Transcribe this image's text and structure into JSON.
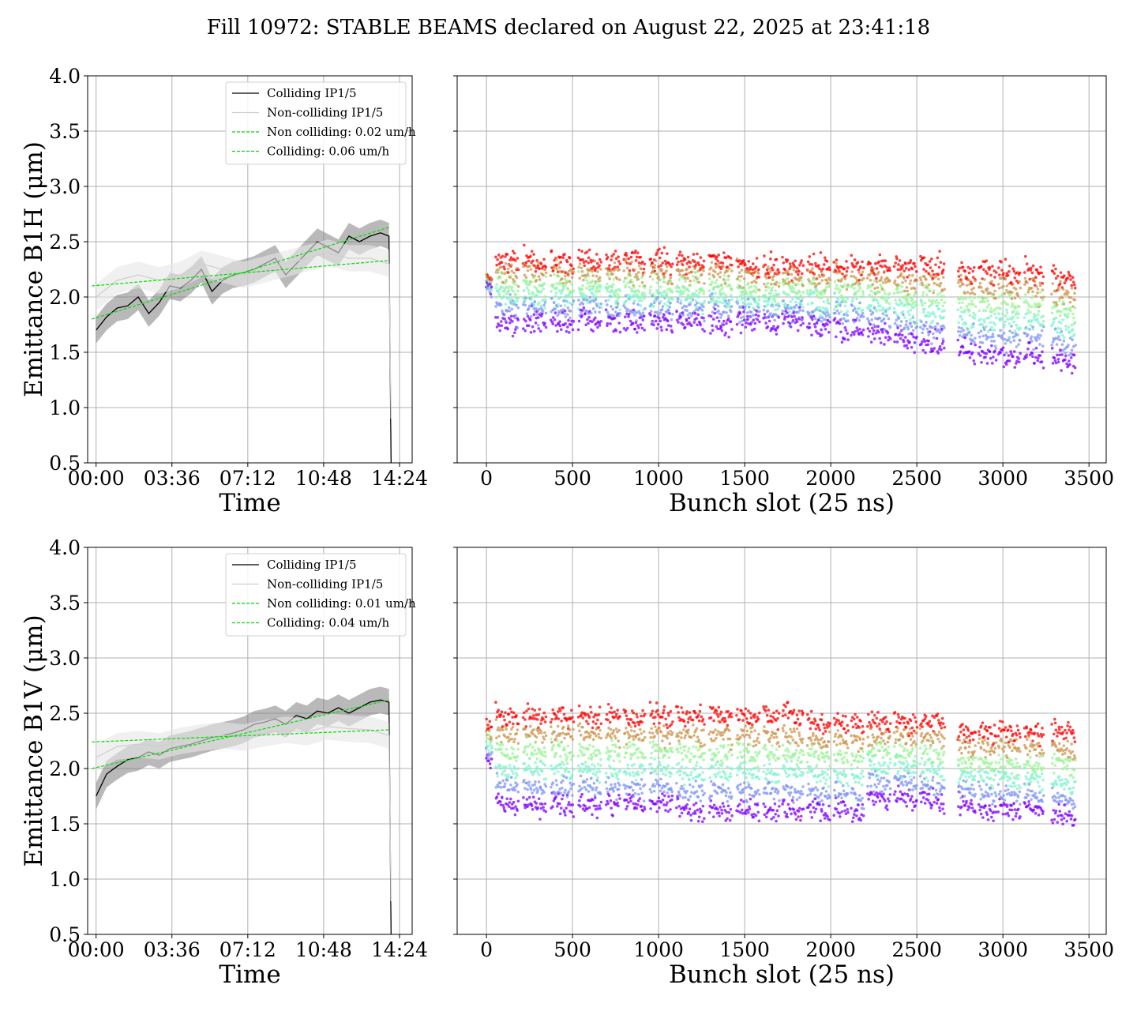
{
  "title": "Fill 10972: STABLE BEAMS declared on August 22, 2025 at 23:41:18",
  "colors": {
    "colliding": "#000000",
    "colliding_band": "#808080",
    "non_colliding": "#cfcfcf",
    "non_colliding_band": "#e6e6e6",
    "fit": "#00dd00",
    "grid": "#b0b0b0"
  },
  "chart_data": [
    {
      "id": "b1h_time",
      "type": "line",
      "title": "",
      "xlabel": "Time",
      "ylabel": "Emittance B1H (μm)",
      "xlim": [
        "-00:24",
        "15:00"
      ],
      "ylim": [
        0.5,
        4.0
      ],
      "xticks": [
        "00:00",
        "03:36",
        "07:12",
        "10:48",
        "14:24"
      ],
      "yticks": [
        "0.5",
        "1.0",
        "1.5",
        "2.0",
        "2.5",
        "3.0",
        "3.5",
        "4.0"
      ],
      "grid": true,
      "legend_position": "upper-right",
      "legend": [
        "Colliding IP1/5",
        "Non-colliding IP1/5",
        "Non colliding: 0.02 um/h",
        "Colliding: 0.06 um/h"
      ],
      "series": [
        {
          "name": "Colliding IP1/5",
          "style": "line",
          "x": [
            0.0,
            0.5,
            1.0,
            1.5,
            2.0,
            2.5,
            3.0,
            3.5,
            4.0,
            4.5,
            5.0,
            5.5,
            6.0,
            6.5,
            7.0,
            7.5,
            8.0,
            8.5,
            9.0,
            9.5,
            10.0,
            10.5,
            11.0,
            11.5,
            12.0,
            12.5,
            13.0,
            13.5,
            13.9,
            14.0
          ],
          "y": [
            1.7,
            1.82,
            1.9,
            1.92,
            2.0,
            1.85,
            1.95,
            2.1,
            2.08,
            2.15,
            2.25,
            2.05,
            2.15,
            2.2,
            2.22,
            2.25,
            2.3,
            2.35,
            2.2,
            2.3,
            2.4,
            2.5,
            2.45,
            2.4,
            2.55,
            2.5,
            2.55,
            2.58,
            2.55,
            0.5
          ]
        },
        {
          "name": "Non-colliding IP1/5",
          "style": "line",
          "x": [
            0.0,
            1.0,
            2.0,
            3.0,
            4.0,
            5.0,
            6.0,
            7.0,
            8.0,
            9.0,
            10.0,
            11.0,
            12.0,
            13.0,
            13.9,
            14.0
          ],
          "y": [
            2.0,
            2.15,
            2.2,
            2.15,
            2.2,
            2.3,
            2.25,
            2.2,
            2.25,
            2.3,
            2.35,
            2.4,
            2.35,
            2.35,
            2.3,
            0.9
          ]
        },
        {
          "name": "Non colliding: 0.02 um/h",
          "style": "dashed",
          "x": [
            -0.2,
            13.9
          ],
          "y": [
            2.1,
            2.33
          ]
        },
        {
          "name": "Colliding: 0.06 um/h",
          "style": "dashed",
          "x": [
            -0.2,
            13.9
          ],
          "y": [
            1.8,
            2.63
          ]
        }
      ]
    },
    {
      "id": "b1h_bunch",
      "type": "scatter",
      "title": "",
      "xlabel": "Bunch slot (25 ns)",
      "ylabel": "",
      "xlim": [
        -170,
        3600
      ],
      "ylim": [
        0.5,
        4.0
      ],
      "xticks": [
        "0",
        "500",
        "1000",
        "1500",
        "2000",
        "2500",
        "3000",
        "3500"
      ],
      "grid": true,
      "colormap": "rainbow",
      "trains": [
        {
          "x_start": 0,
          "x_end": 30,
          "y_start": 2.2,
          "y_end": 2.1,
          "spread": 0.2
        },
        {
          "x_start": 55,
          "x_end": 185,
          "y_start": 2.35,
          "y_end": 1.8,
          "spread": 0.35
        },
        {
          "x_start": 215,
          "x_end": 345,
          "y_start": 2.35,
          "y_end": 1.8,
          "spread": 0.35
        },
        {
          "x_start": 375,
          "x_end": 505,
          "y_start": 2.35,
          "y_end": 1.8,
          "spread": 0.35
        },
        {
          "x_start": 535,
          "x_end": 665,
          "y_start": 2.35,
          "y_end": 1.8,
          "spread": 0.35
        },
        {
          "x_start": 695,
          "x_end": 775,
          "y_start": 2.35,
          "y_end": 1.8,
          "spread": 0.35
        },
        {
          "x_start": 800,
          "x_end": 920,
          "y_start": 2.35,
          "y_end": 1.8,
          "spread": 0.35
        },
        {
          "x_start": 950,
          "x_end": 1080,
          "y_start": 2.35,
          "y_end": 1.8,
          "spread": 0.35
        },
        {
          "x_start": 1105,
          "x_end": 1190,
          "y_start": 2.35,
          "y_end": 1.8,
          "spread": 0.35
        },
        {
          "x_start": 1200,
          "x_end": 1265,
          "y_start": 2.35,
          "y_end": 1.8,
          "spread": 0.35
        },
        {
          "x_start": 1295,
          "x_end": 1425,
          "y_start": 2.35,
          "y_end": 1.8,
          "spread": 0.35
        },
        {
          "x_start": 1455,
          "x_end": 1585,
          "y_start": 2.3,
          "y_end": 1.8,
          "spread": 0.35
        },
        {
          "x_start": 1610,
          "x_end": 1700,
          "y_start": 2.3,
          "y_end": 1.8,
          "spread": 0.35
        },
        {
          "x_start": 1720,
          "x_end": 1840,
          "y_start": 2.3,
          "y_end": 1.8,
          "spread": 0.35
        },
        {
          "x_start": 1865,
          "x_end": 1995,
          "y_start": 2.3,
          "y_end": 1.75,
          "spread": 0.35
        },
        {
          "x_start": 2020,
          "x_end": 2100,
          "y_start": 2.3,
          "y_end": 1.75,
          "spread": 0.35
        },
        {
          "x_start": 2120,
          "x_end": 2190,
          "y_start": 2.3,
          "y_end": 1.75,
          "spread": 0.35
        },
        {
          "x_start": 2215,
          "x_end": 2345,
          "y_start": 2.3,
          "y_end": 1.7,
          "spread": 0.35
        },
        {
          "x_start": 2370,
          "x_end": 2500,
          "y_start": 2.3,
          "y_end": 1.65,
          "spread": 0.35
        },
        {
          "x_start": 2520,
          "x_end": 2600,
          "y_start": 2.3,
          "y_end": 1.6,
          "spread": 0.35
        },
        {
          "x_start": 2610,
          "x_end": 2660,
          "y_start": 2.3,
          "y_end": 1.6,
          "spread": 0.35
        },
        {
          "x_start": 2740,
          "x_end": 2840,
          "y_start": 2.25,
          "y_end": 1.55,
          "spread": 0.35
        },
        {
          "x_start": 2860,
          "x_end": 2960,
          "y_start": 2.25,
          "y_end": 1.5,
          "spread": 0.35
        },
        {
          "x_start": 2975,
          "x_end": 3100,
          "y_start": 2.25,
          "y_end": 1.5,
          "spread": 0.35
        },
        {
          "x_start": 3125,
          "x_end": 3235,
          "y_start": 2.25,
          "y_end": 1.5,
          "spread": 0.35
        },
        {
          "x_start": 3285,
          "x_end": 3420,
          "y_start": 2.2,
          "y_end": 1.45,
          "spread": 0.35
        }
      ]
    },
    {
      "id": "b1v_time",
      "type": "line",
      "title": "",
      "xlabel": "Time",
      "ylabel": "Emittance B1V (μm)",
      "xlim": [
        "-00:24",
        "15:00"
      ],
      "ylim": [
        0.5,
        4.0
      ],
      "xticks": [
        "00:00",
        "03:36",
        "07:12",
        "10:48",
        "14:24"
      ],
      "yticks": [
        "0.5",
        "1.0",
        "1.5",
        "2.0",
        "2.5",
        "3.0",
        "3.5",
        "4.0"
      ],
      "grid": true,
      "legend_position": "upper-right",
      "legend": [
        "Colliding IP1/5",
        "Non-colliding IP1/5",
        "Non colliding: 0.01 um/h",
        "Colliding: 0.04 um/h"
      ],
      "series": [
        {
          "name": "Colliding IP1/5",
          "style": "line",
          "x": [
            0.0,
            0.5,
            1.0,
            1.5,
            2.0,
            2.5,
            3.0,
            3.5,
            4.0,
            4.5,
            5.0,
            5.5,
            6.0,
            6.5,
            7.0,
            7.5,
            8.0,
            8.5,
            9.0,
            9.5,
            10.0,
            10.5,
            11.0,
            11.5,
            12.0,
            12.5,
            13.0,
            13.5,
            13.9,
            14.0
          ],
          "y": [
            1.75,
            1.95,
            2.02,
            2.08,
            2.1,
            2.15,
            2.12,
            2.18,
            2.2,
            2.22,
            2.25,
            2.28,
            2.3,
            2.32,
            2.35,
            2.4,
            2.42,
            2.45,
            2.4,
            2.48,
            2.45,
            2.52,
            2.5,
            2.55,
            2.5,
            2.55,
            2.6,
            2.62,
            2.6,
            0.5
          ]
        },
        {
          "name": "Non-colliding IP1/5",
          "style": "line",
          "x": [
            0.0,
            1.0,
            2.0,
            3.0,
            4.0,
            5.0,
            6.0,
            7.0,
            8.0,
            9.0,
            10.0,
            11.0,
            12.0,
            13.0,
            13.9,
            14.0
          ],
          "y": [
            2.1,
            2.2,
            2.22,
            2.2,
            2.25,
            2.28,
            2.3,
            2.28,
            2.32,
            2.35,
            2.33,
            2.38,
            2.36,
            2.35,
            2.3,
            0.8
          ]
        },
        {
          "name": "Non colliding: 0.01 um/h",
          "style": "dashed",
          "x": [
            -0.2,
            13.9
          ],
          "y": [
            2.24,
            2.35
          ]
        },
        {
          "name": "Colliding: 0.04 um/h",
          "style": "dashed",
          "x": [
            -0.2,
            13.9
          ],
          "y": [
            2.0,
            2.62
          ]
        }
      ]
    },
    {
      "id": "b1v_bunch",
      "type": "scatter",
      "title": "",
      "xlabel": "Bunch slot (25 ns)",
      "ylabel": "",
      "xlim": [
        -170,
        3600
      ],
      "ylim": [
        0.5,
        4.0
      ],
      "xticks": [
        "0",
        "500",
        "1000",
        "1500",
        "2000",
        "2500",
        "3000",
        "3500"
      ],
      "grid": true,
      "colormap": "rainbow",
      "trains": [
        {
          "x_start": 0,
          "x_end": 30,
          "y_start": 2.4,
          "y_end": 2.1,
          "spread": 0.2
        },
        {
          "x_start": 55,
          "x_end": 185,
          "y_start": 2.5,
          "y_end": 1.7,
          "spread": 0.3
        },
        {
          "x_start": 215,
          "x_end": 345,
          "y_start": 2.5,
          "y_end": 1.7,
          "spread": 0.3
        },
        {
          "x_start": 375,
          "x_end": 505,
          "y_start": 2.5,
          "y_end": 1.7,
          "spread": 0.3
        },
        {
          "x_start": 535,
          "x_end": 665,
          "y_start": 2.5,
          "y_end": 1.7,
          "spread": 0.3
        },
        {
          "x_start": 695,
          "x_end": 775,
          "y_start": 2.5,
          "y_end": 1.7,
          "spread": 0.3
        },
        {
          "x_start": 800,
          "x_end": 920,
          "y_start": 2.5,
          "y_end": 1.7,
          "spread": 0.3
        },
        {
          "x_start": 950,
          "x_end": 1080,
          "y_start": 2.5,
          "y_end": 1.7,
          "spread": 0.3
        },
        {
          "x_start": 1105,
          "x_end": 1190,
          "y_start": 2.5,
          "y_end": 1.65,
          "spread": 0.3
        },
        {
          "x_start": 1200,
          "x_end": 1265,
          "y_start": 2.5,
          "y_end": 1.65,
          "spread": 0.3
        },
        {
          "x_start": 1295,
          "x_end": 1425,
          "y_start": 2.5,
          "y_end": 1.65,
          "spread": 0.3
        },
        {
          "x_start": 1455,
          "x_end": 1585,
          "y_start": 2.5,
          "y_end": 1.65,
          "spread": 0.3
        },
        {
          "x_start": 1610,
          "x_end": 1700,
          "y_start": 2.5,
          "y_end": 1.65,
          "spread": 0.3
        },
        {
          "x_start": 1720,
          "x_end": 1840,
          "y_start": 2.5,
          "y_end": 1.65,
          "spread": 0.3
        },
        {
          "x_start": 1865,
          "x_end": 1995,
          "y_start": 2.45,
          "y_end": 1.65,
          "spread": 0.3
        },
        {
          "x_start": 2020,
          "x_end": 2100,
          "y_start": 2.45,
          "y_end": 1.65,
          "spread": 0.3
        },
        {
          "x_start": 2120,
          "x_end": 2190,
          "y_start": 2.45,
          "y_end": 1.6,
          "spread": 0.3
        },
        {
          "x_start": 2215,
          "x_end": 2345,
          "y_start": 2.45,
          "y_end": 1.75,
          "spread": 0.3
        },
        {
          "x_start": 2370,
          "x_end": 2500,
          "y_start": 2.45,
          "y_end": 1.75,
          "spread": 0.3
        },
        {
          "x_start": 2520,
          "x_end": 2600,
          "y_start": 2.45,
          "y_end": 1.75,
          "spread": 0.3
        },
        {
          "x_start": 2610,
          "x_end": 2660,
          "y_start": 2.45,
          "y_end": 1.7,
          "spread": 0.3
        },
        {
          "x_start": 2740,
          "x_end": 2840,
          "y_start": 2.35,
          "y_end": 1.7,
          "spread": 0.3
        },
        {
          "x_start": 2860,
          "x_end": 2960,
          "y_start": 2.35,
          "y_end": 1.65,
          "spread": 0.3
        },
        {
          "x_start": 2975,
          "x_end": 3100,
          "y_start": 2.35,
          "y_end": 1.65,
          "spread": 0.3
        },
        {
          "x_start": 3125,
          "x_end": 3235,
          "y_start": 2.35,
          "y_end": 1.65,
          "spread": 0.3
        },
        {
          "x_start": 3285,
          "x_end": 3420,
          "y_start": 2.35,
          "y_end": 1.6,
          "spread": 0.3
        }
      ]
    }
  ]
}
